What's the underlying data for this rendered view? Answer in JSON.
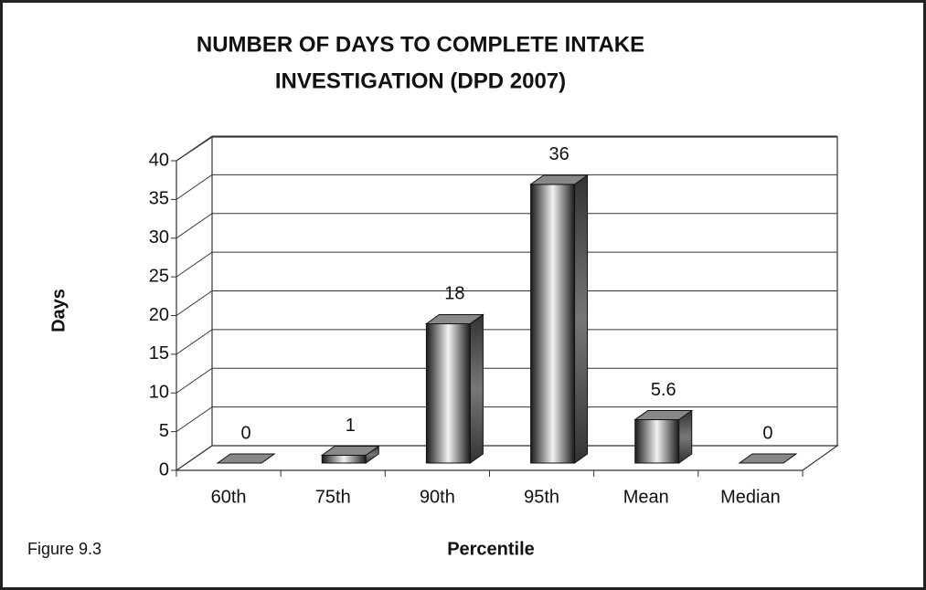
{
  "chart_data": {
    "type": "bar3d",
    "title": [
      "NUMBER OF DAYS TO COMPLETE INTAKE",
      "INVESTIGATION (DPD 2007)"
    ],
    "x_label": "Percentile",
    "y_label": "Days",
    "annotation": "Figure 9.3",
    "categories": [
      "60th",
      "75th",
      "90th",
      "95th",
      "Mean",
      "Median"
    ],
    "values": [
      0,
      1,
      18,
      36,
      5.6,
      0
    ],
    "ylim": [
      0,
      40
    ],
    "yticks": [
      0,
      5,
      10,
      15,
      20,
      25,
      30,
      35,
      40
    ],
    "grid": true
  }
}
